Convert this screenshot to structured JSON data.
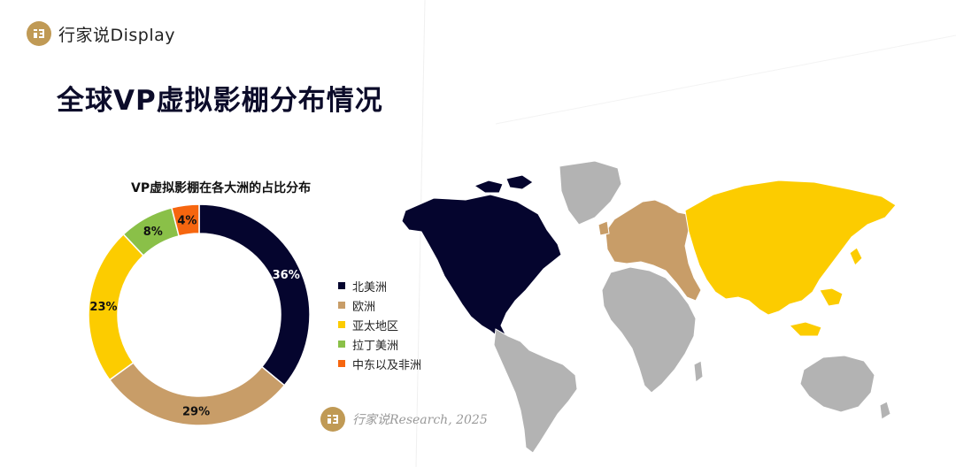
{
  "brand": {
    "name": "行家说Display",
    "icon": "brand-logo-icon"
  },
  "page_title": "全球VP虚拟影棚分布情况",
  "source": {
    "text": "行家说Research, 2025",
    "icon": "brand-logo-icon"
  },
  "colors": {
    "north_america": "#05052e",
    "europe": "#c89d68",
    "asia_pacific": "#fccc00",
    "latin_america": "#8ac048",
    "mideast_africa": "#f6660f",
    "neutral_land": "#b3b3b3"
  },
  "chart_data": {
    "type": "pie",
    "title": "VP虚拟影棚在各大洲的占比分布",
    "donut": true,
    "legend_position": "right",
    "categories": [
      "北美洲",
      "欧洲",
      "亚太地区",
      "拉丁美洲",
      "中东以及非洲"
    ],
    "values": [
      36,
      29,
      23,
      8,
      4
    ],
    "labels": [
      "36%",
      "29%",
      "23%",
      "8%",
      "4%"
    ],
    "colors": [
      "#05052e",
      "#c89d68",
      "#fccc00",
      "#8ac048",
      "#f6660f"
    ]
  }
}
